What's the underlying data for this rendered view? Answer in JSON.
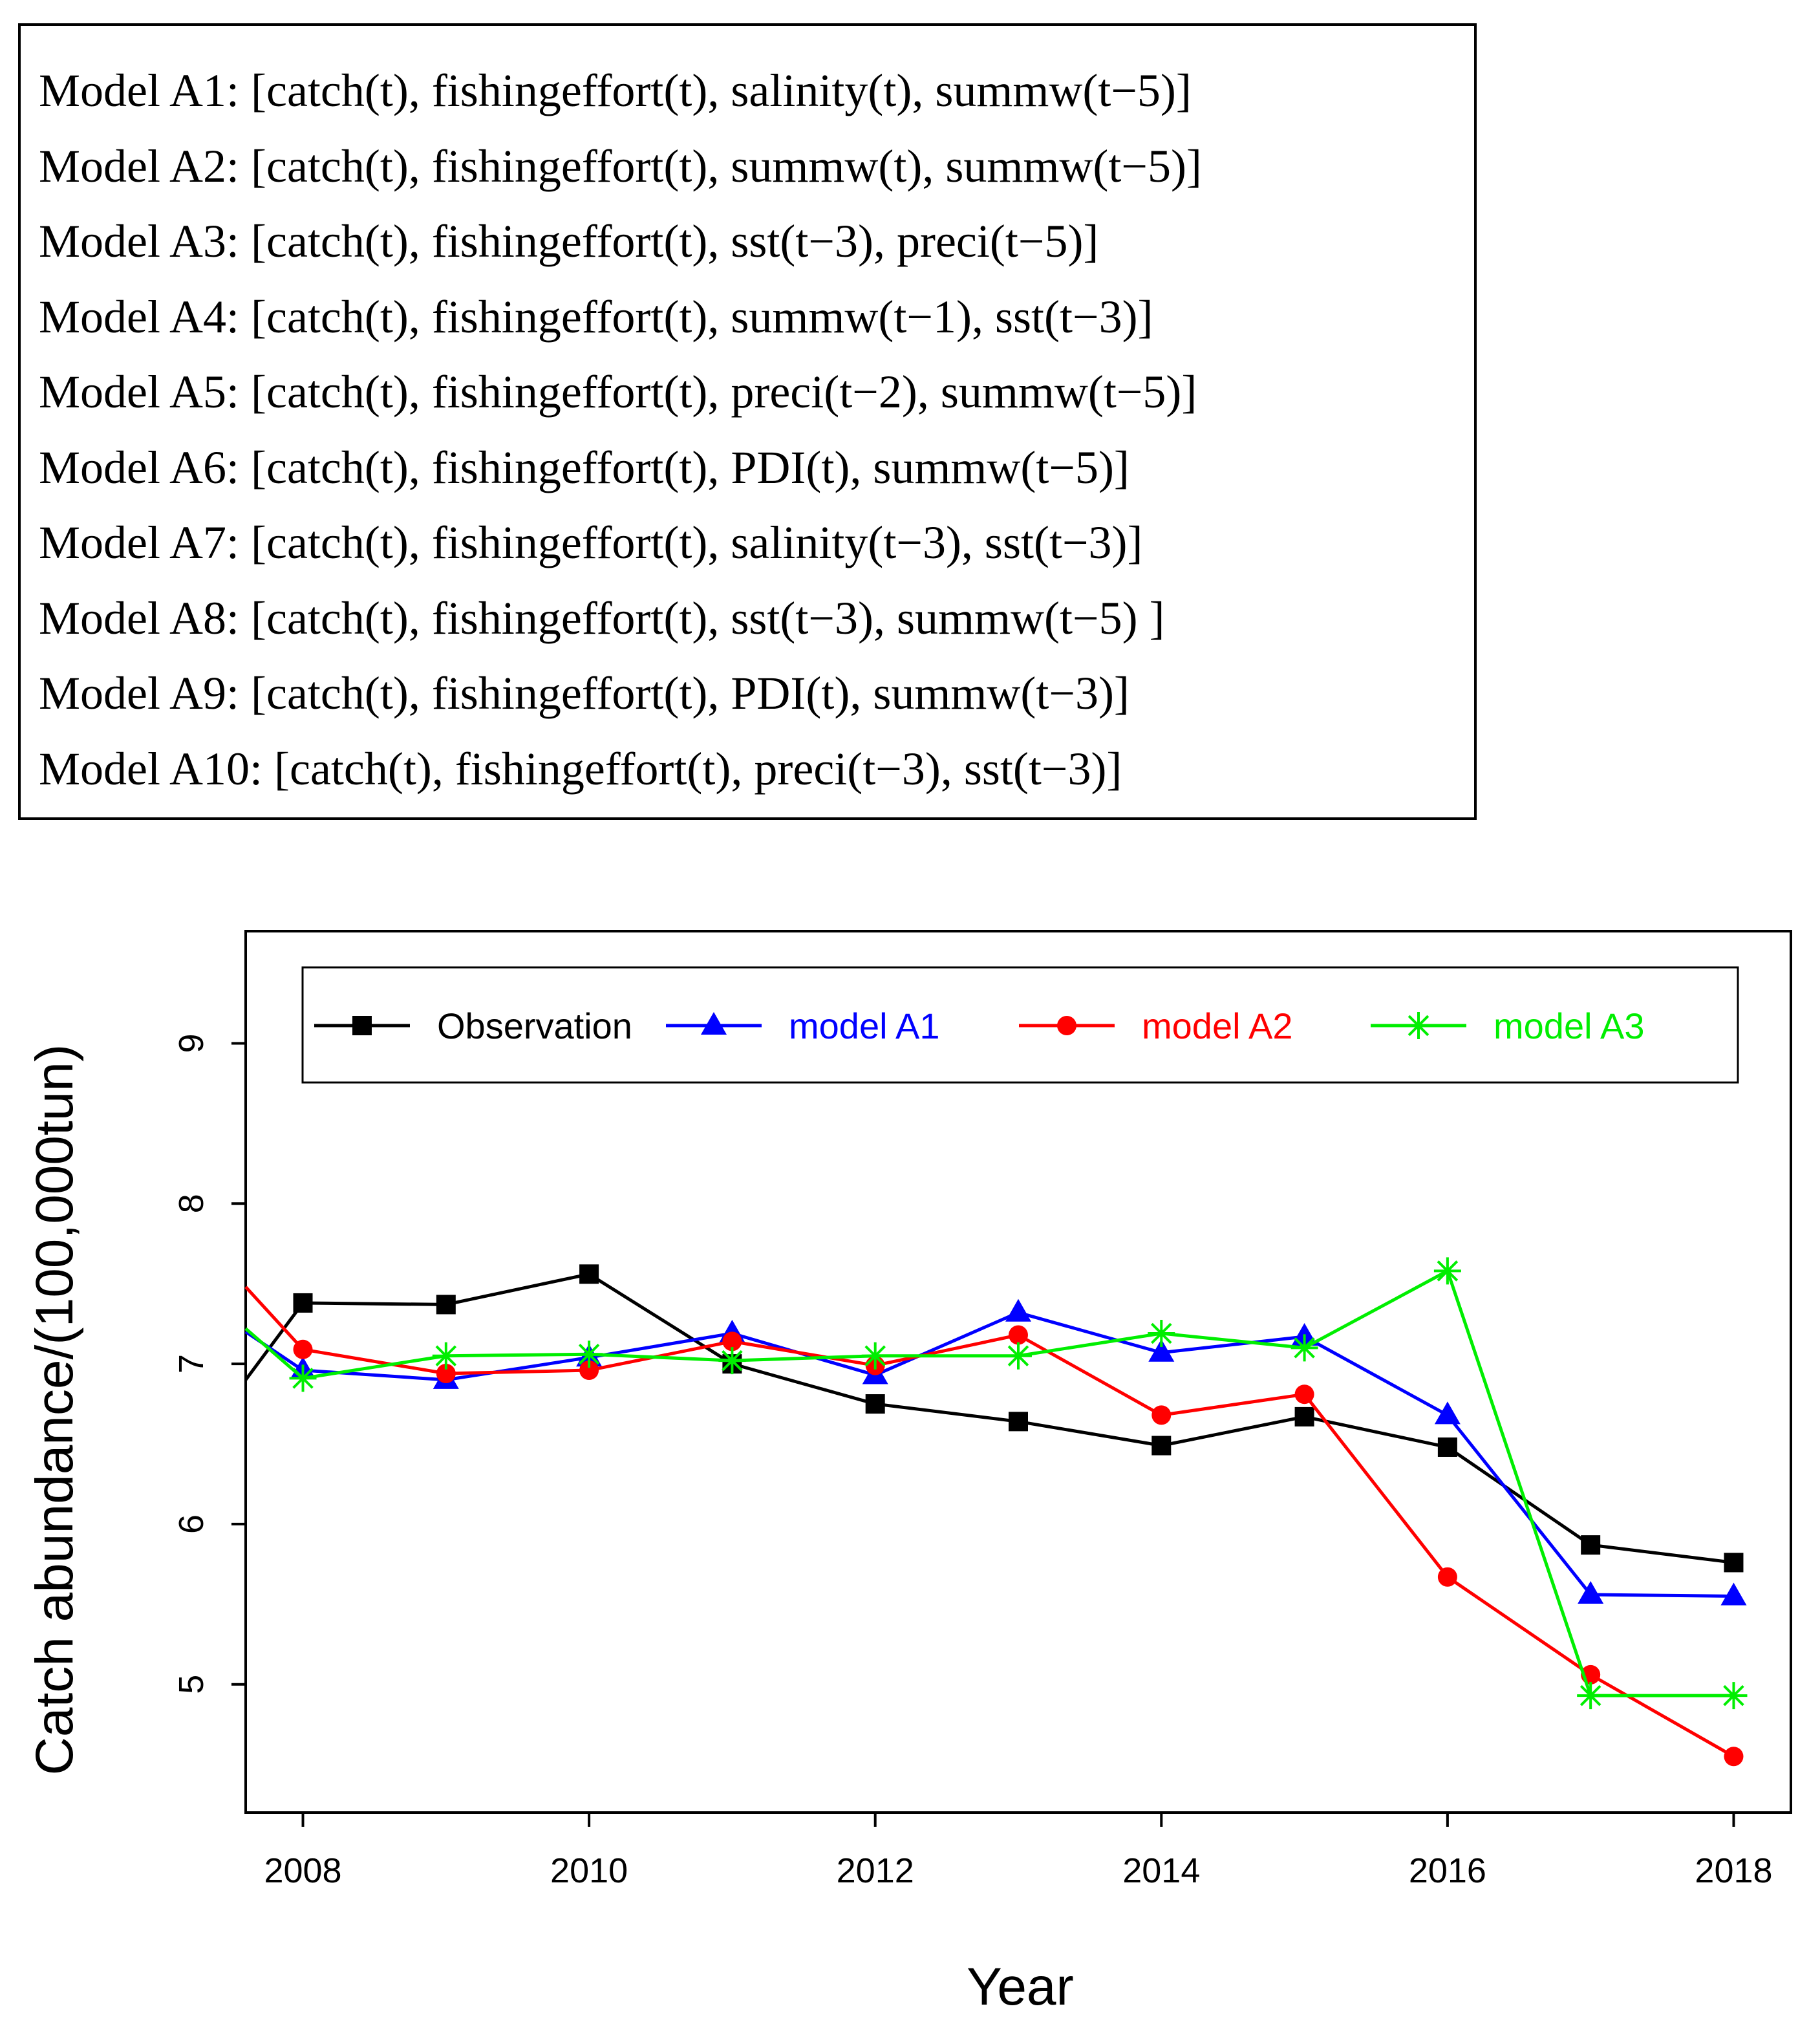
{
  "models": {
    "items": [
      "Model A1: [catch(t), fishingeffort(t), salinity(t), summw(t−5)]",
      "Model A2: [catch(t), fishingeffort(t), summw(t), summw(t−5)]",
      "Model A3: [catch(t), fishingeffort(t), sst(t−3), preci(t−5)]",
      "Model A4: [catch(t), fishingeffort(t), summw(t−1), sst(t−3)]",
      "Model A5: [catch(t), fishingeffort(t), preci(t−2), summw(t−5)]",
      "Model A6: [catch(t), fishingeffort(t), PDI(t), summw(t−5)]",
      "Model A7: [catch(t), fishingeffort(t), salinity(t−3), sst(t−3)]",
      "Model A8: [catch(t), fishingeffort(t), sst(t−3), summw(t−5) ]",
      "Model A9: [catch(t), fishingeffort(t), PDI(t), summw(t−3)]",
      "Model A10: [catch(t), fishingeffort(t), preci(t−3), sst(t−3)]"
    ]
  },
  "chart_data": {
    "type": "line",
    "title": "",
    "xlabel": "Year",
    "ylabel": "Catch abundance/(100,000tun)",
    "xlim": [
      2007.6,
      2018.4
    ],
    "ylim": [
      4.2,
      9.7
    ],
    "x_ticks": [
      2008,
      2010,
      2012,
      2014,
      2016,
      2018
    ],
    "x_tick_labels": [
      "2008",
      "2010",
      "2012",
      "2014",
      "2016",
      "2018"
    ],
    "y_ticks": [
      5,
      6,
      7,
      8,
      9
    ],
    "y_tick_labels": [
      "5",
      "6",
      "7",
      "8",
      "9"
    ],
    "grid": false,
    "legend_position": "top",
    "series": [
      {
        "name": "Observation",
        "color": "#000000",
        "marker": "square",
        "x": [
          2007.6,
          2008,
          2009,
          2010,
          2011,
          2012,
          2013,
          2014,
          2015,
          2016,
          2017,
          2018
        ],
        "values": [
          6.9,
          7.38,
          7.37,
          7.56,
          7.0,
          6.75,
          6.64,
          6.49,
          6.67,
          6.48,
          5.87,
          5.76
        ]
      },
      {
        "name": "model A1",
        "color": "#0000ff",
        "marker": "triangle",
        "x": [
          2007.6,
          2008,
          2009,
          2010,
          2011,
          2012,
          2013,
          2014,
          2015,
          2016,
          2017,
          2018
        ],
        "values": [
          7.2,
          6.96,
          6.9,
          7.04,
          7.19,
          6.93,
          7.32,
          7.07,
          7.17,
          6.68,
          5.56,
          5.55
        ]
      },
      {
        "name": "model A2",
        "color": "#ff0000",
        "marker": "circle",
        "x": [
          2007.6,
          2008,
          2009,
          2010,
          2011,
          2012,
          2013,
          2014,
          2015,
          2016,
          2017,
          2018
        ],
        "values": [
          7.48,
          7.09,
          6.94,
          6.96,
          7.14,
          6.99,
          7.18,
          6.68,
          6.81,
          5.67,
          5.06,
          4.55
        ]
      },
      {
        "name": "model A3",
        "color": "#00ee00",
        "marker": "asterisk",
        "x": [
          2007.6,
          2008,
          2009,
          2010,
          2011,
          2012,
          2013,
          2014,
          2015,
          2016,
          2017,
          2018
        ],
        "values": [
          7.22,
          6.91,
          7.05,
          7.06,
          7.02,
          7.05,
          7.05,
          7.19,
          7.1,
          7.58,
          4.93,
          4.93
        ]
      }
    ]
  }
}
